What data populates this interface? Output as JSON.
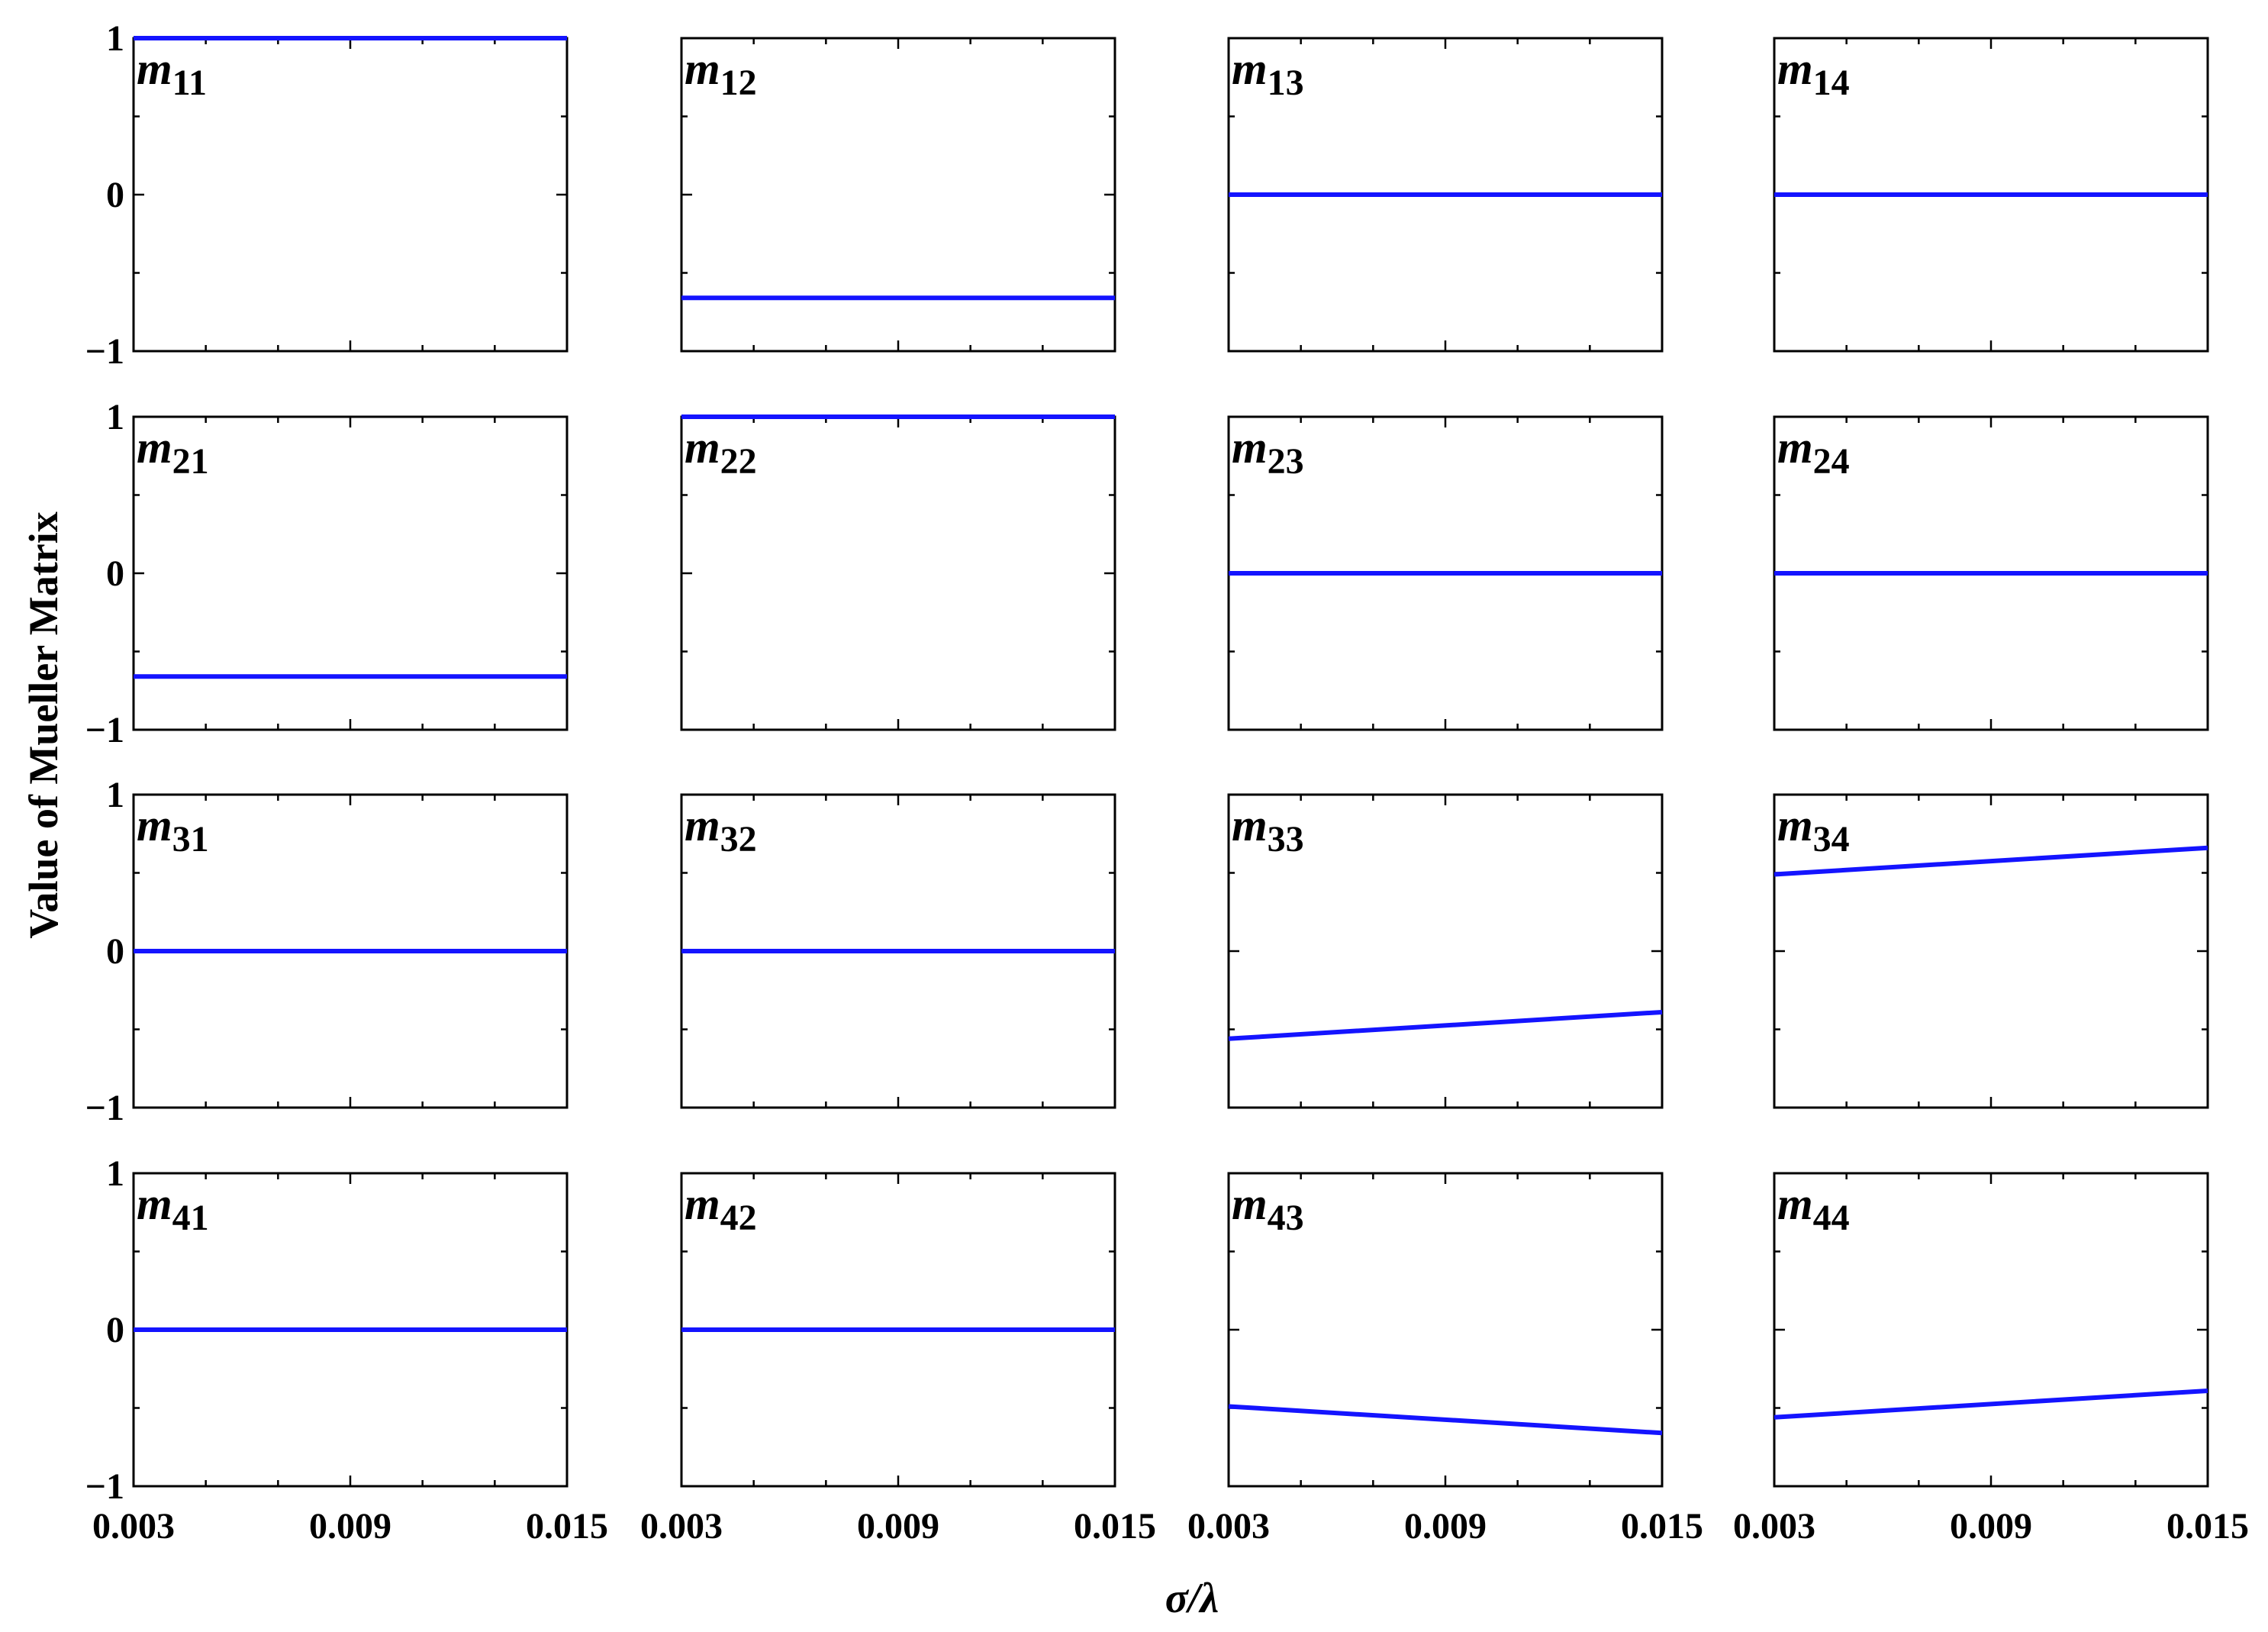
{
  "chart_data": {
    "type": "line",
    "xlabel": "σ/λ",
    "ylabel": "Value of Mueller Matrix",
    "xlim": [
      0.003,
      0.015
    ],
    "ylim": [
      -1,
      1
    ],
    "x_ticks": [
      "0.003",
      "0.009",
      "0.015"
    ],
    "y_ticks": [
      "1",
      "0",
      "−1"
    ],
    "series_color": "#1414ff",
    "panels": [
      {
        "label_base": "m",
        "label_sub": "11",
        "x": [
          0.003,
          0.015
        ],
        "y": [
          1.0,
          1.0
        ]
      },
      {
        "label_base": "m",
        "label_sub": "12",
        "x": [
          0.003,
          0.015
        ],
        "y": [
          -0.66,
          -0.66
        ]
      },
      {
        "label_base": "m",
        "label_sub": "13",
        "x": [
          0.003,
          0.015
        ],
        "y": [
          0.0,
          0.0
        ]
      },
      {
        "label_base": "m",
        "label_sub": "14",
        "x": [
          0.003,
          0.015
        ],
        "y": [
          0.0,
          0.0
        ]
      },
      {
        "label_base": "m",
        "label_sub": "21",
        "x": [
          0.003,
          0.015
        ],
        "y": [
          -0.66,
          -0.66
        ]
      },
      {
        "label_base": "m",
        "label_sub": "22",
        "x": [
          0.003,
          0.015
        ],
        "y": [
          1.0,
          1.0
        ]
      },
      {
        "label_base": "m",
        "label_sub": "23",
        "x": [
          0.003,
          0.015
        ],
        "y": [
          0.0,
          0.0
        ]
      },
      {
        "label_base": "m",
        "label_sub": "24",
        "x": [
          0.003,
          0.015
        ],
        "y": [
          0.0,
          0.0
        ]
      },
      {
        "label_base": "m",
        "label_sub": "31",
        "x": [
          0.003,
          0.015
        ],
        "y": [
          0.0,
          0.0
        ]
      },
      {
        "label_base": "m",
        "label_sub": "32",
        "x": [
          0.003,
          0.015
        ],
        "y": [
          0.0,
          0.0
        ]
      },
      {
        "label_base": "m",
        "label_sub": "33",
        "x": [
          0.003,
          0.015
        ],
        "y": [
          -0.56,
          -0.39
        ]
      },
      {
        "label_base": "m",
        "label_sub": "34",
        "x": [
          0.003,
          0.015
        ],
        "y": [
          0.49,
          0.66
        ]
      },
      {
        "label_base": "m",
        "label_sub": "41",
        "x": [
          0.003,
          0.015
        ],
        "y": [
          0.0,
          0.0
        ]
      },
      {
        "label_base": "m",
        "label_sub": "42",
        "x": [
          0.003,
          0.015
        ],
        "y": [
          0.0,
          0.0
        ]
      },
      {
        "label_base": "m",
        "label_sub": "43",
        "x": [
          0.003,
          0.015
        ],
        "y": [
          -0.49,
          -0.66
        ]
      },
      {
        "label_base": "m",
        "label_sub": "44",
        "x": [
          0.003,
          0.015
        ],
        "y": [
          -0.56,
          -0.39
        ]
      }
    ]
  }
}
